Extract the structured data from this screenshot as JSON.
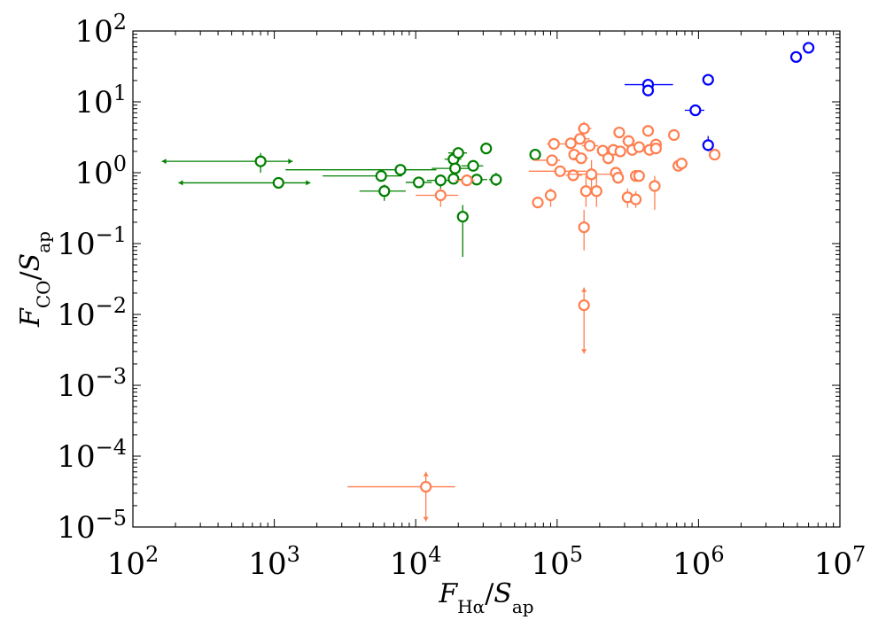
{
  "chart_data": {
    "type": "scatter",
    "xscale": "log",
    "yscale": "log",
    "xlim": [
      100,
      10000000
    ],
    "ylim": [
      1e-05,
      100
    ],
    "xlabel": {
      "main": "F",
      "sub": "Hα",
      "sep": "/",
      "main2": "S",
      "sub2": "ap"
    },
    "ylabel": {
      "main": "F",
      "sub": "CO",
      "sep": "/",
      "main2": "S",
      "sub2": "ap"
    },
    "x_ticks": [
      {
        "value": 100,
        "base": "10",
        "exp": "2"
      },
      {
        "value": 1000,
        "base": "10",
        "exp": "3"
      },
      {
        "value": 10000,
        "base": "10",
        "exp": "4"
      },
      {
        "value": 100000,
        "base": "10",
        "exp": "5"
      },
      {
        "value": 1000000,
        "base": "10",
        "exp": "6"
      },
      {
        "value": 10000000,
        "base": "10",
        "exp": "7"
      }
    ],
    "y_ticks": [
      {
        "value": 1e-05,
        "base": "10",
        "exp": "−5"
      },
      {
        "value": 0.0001,
        "base": "10",
        "exp": "−4"
      },
      {
        "value": 0.001,
        "base": "10",
        "exp": "−3"
      },
      {
        "value": 0.01,
        "base": "10",
        "exp": "−2"
      },
      {
        "value": 0.1,
        "base": "10",
        "exp": "−1"
      },
      {
        "value": 1,
        "base": "10",
        "exp": "0"
      },
      {
        "value": 10,
        "base": "10",
        "exp": "1"
      },
      {
        "value": 100,
        "base": "10",
        "exp": "2"
      }
    ],
    "series": [
      {
        "name": "green",
        "color": "#008000",
        "points": [
          {
            "x": 800,
            "y": 1.45,
            "xerr": [
              160,
              1350
            ],
            "yerr": [
              1.0,
              1.9
            ],
            "xarrows": "both"
          },
          {
            "x": 1070,
            "y": 0.72,
            "xerr": [
              210,
              1800
            ],
            "yerr": [
              0.62,
              0.84
            ],
            "xarrows": "both"
          },
          {
            "x": 5700,
            "y": 0.9,
            "xerr": [
              2200,
              8000
            ],
            "yerr": [
              0.82,
              1.0
            ]
          },
          {
            "x": 6000,
            "y": 0.55,
            "xerr": [
              4000,
              8500
            ],
            "yerr": [
              0.4,
              0.68
            ]
          },
          {
            "x": 7800,
            "y": 1.1,
            "xerr": [
              1200,
              14000
            ],
            "yerr": [
              0.98,
              1.22
            ]
          },
          {
            "x": 10500,
            "y": 0.73,
            "xerr": [
              8500,
              13000
            ]
          },
          {
            "x": 15000,
            "y": 0.78,
            "xerr": [
              12000,
              19000
            ],
            "yerr": [
              0.6,
              0.9
            ]
          },
          {
            "x": 18500,
            "y": 0.82
          },
          {
            "x": 18500,
            "y": 1.55,
            "xerr": [
              16000,
              21000
            ],
            "yerr": [
              1.35,
              1.7
            ]
          },
          {
            "x": 19000,
            "y": 1.15,
            "xerr": [
              13000,
              25000
            ],
            "yerr": [
              1.0,
              1.3
            ]
          },
          {
            "x": 20000,
            "y": 1.9,
            "xerr": [
              17000,
              23000
            ]
          },
          {
            "x": 21500,
            "y": 0.24,
            "yerr": [
              0.065,
              0.35
            ]
          },
          {
            "x": 25500,
            "y": 1.25,
            "xerr": [
              21000,
              30000
            ],
            "yerr": [
              1.1,
              1.4
            ]
          },
          {
            "x": 27000,
            "y": 0.8,
            "xerr": [
              20000,
              32000
            ]
          },
          {
            "x": 31500,
            "y": 2.2
          },
          {
            "x": 37000,
            "y": 0.8,
            "xerr": [
              33000,
              40000
            ],
            "yerr": [
              0.65,
              1.0
            ]
          },
          {
            "x": 70000,
            "y": 1.8
          }
        ]
      },
      {
        "name": "orange",
        "color": "#ff7f50",
        "points": [
          {
            "x": 11800,
            "y": 3.7e-05,
            "xerr": [
              3300,
              19000
            ],
            "yerr": [
              1.2e-05,
              6e-05
            ],
            "yarrows": "both"
          },
          {
            "x": 15000,
            "y": 0.48,
            "xerr": [
              10000,
              20000
            ],
            "yerr": [
              0.33,
              0.6
            ]
          },
          {
            "x": 23000,
            "y": 0.78,
            "xerr": [
              19000,
              26000
            ]
          },
          {
            "x": 73000,
            "y": 0.38,
            "yerr": [
              0.32,
              0.44
            ]
          },
          {
            "x": 90000,
            "y": 0.48,
            "yerr": [
              0.33,
              0.6
            ]
          },
          {
            "x": 92000,
            "y": 1.5,
            "xerr": [
              68000,
              105000
            ]
          },
          {
            "x": 95000,
            "y": 2.55,
            "xerr": [
              85000,
              115000
            ]
          },
          {
            "x": 105000,
            "y": 1.05,
            "xerr": [
              63000,
              160000
            ]
          },
          {
            "x": 125000,
            "y": 2.6,
            "xerr": [
              115000,
              145000
            ]
          },
          {
            "x": 130000,
            "y": 0.92,
            "xerr": [
              115000,
              150000
            ]
          },
          {
            "x": 132000,
            "y": 1.8
          },
          {
            "x": 145000,
            "y": 3.0,
            "xerr": [
              125000,
              170000
            ]
          },
          {
            "x": 148000,
            "y": 1.6,
            "xerr": [
              130000,
              165000
            ]
          },
          {
            "x": 155000,
            "y": 4.2,
            "xerr": [
              140000,
              175000
            ],
            "yerr": [
              3.6,
              5.2
            ]
          },
          {
            "x": 155000,
            "y": 0.17,
            "yerr": [
              0.08,
              0.3
            ]
          },
          {
            "x": 155000,
            "y": 0.0135,
            "yerr": [
              0.0028,
              0.024
            ],
            "yarrows": "both"
          },
          {
            "x": 160000,
            "y": 0.55,
            "yerr": [
              0.33,
              0.9
            ]
          },
          {
            "x": 170000,
            "y": 2.4,
            "xerr": [
              150000,
              195000
            ]
          },
          {
            "x": 175000,
            "y": 0.95,
            "xerr": [
              120000,
              270000
            ],
            "yerr": [
              0.55,
              1.5
            ]
          },
          {
            "x": 190000,
            "y": 0.55,
            "yerr": [
              0.33,
              0.95
            ]
          },
          {
            "x": 210000,
            "y": 2.05,
            "xerr": [
              195000,
              230000
            ]
          },
          {
            "x": 230000,
            "y": 1.6
          },
          {
            "x": 250000,
            "y": 2.1
          },
          {
            "x": 260000,
            "y": 1.0,
            "xerr": [
              240000,
              290000
            ]
          },
          {
            "x": 270000,
            "y": 0.85
          },
          {
            "x": 275000,
            "y": 3.7,
            "xerr": [
              260000,
              300000
            ]
          },
          {
            "x": 280000,
            "y": 2.0
          },
          {
            "x": 315000,
            "y": 0.45,
            "yerr": [
              0.32,
              0.6
            ]
          },
          {
            "x": 320000,
            "y": 2.8,
            "xerr": [
              290000,
              355000
            ]
          },
          {
            "x": 340000,
            "y": 2.1
          },
          {
            "x": 360000,
            "y": 0.9,
            "xerr": [
              335000,
              395000
            ]
          },
          {
            "x": 360000,
            "y": 0.42,
            "yerr": [
              0.32,
              0.55
            ]
          },
          {
            "x": 380000,
            "y": 2.3,
            "xerr": [
              355000,
              410000
            ]
          },
          {
            "x": 380000,
            "y": 0.9,
            "yerr": [
              0.78,
              1.0
            ]
          },
          {
            "x": 440000,
            "y": 3.9
          },
          {
            "x": 450000,
            "y": 2.1,
            "xerr": [
              420000,
              480000
            ]
          },
          {
            "x": 490000,
            "y": 0.65,
            "yerr": [
              0.3,
              0.9
            ]
          },
          {
            "x": 500000,
            "y": 2.5,
            "xerr": [
              470000,
              530000
            ]
          },
          {
            "x": 500000,
            "y": 2.2
          },
          {
            "x": 670000,
            "y": 3.4
          },
          {
            "x": 720000,
            "y": 1.25
          },
          {
            "x": 760000,
            "y": 1.35
          },
          {
            "x": 1300000,
            "y": 1.8
          }
        ]
      },
      {
        "name": "blue",
        "color": "#0000ff",
        "points": [
          {
            "x": 440000,
            "y": 17.5,
            "xerr": [
              300000,
              660000
            ]
          },
          {
            "x": 440000,
            "y": 14.5
          },
          {
            "x": 950000,
            "y": 7.6,
            "xerr": [
              800000,
              1100000
            ],
            "yerr": [
              6.3,
              9.0
            ]
          },
          {
            "x": 1170000,
            "y": 2.45,
            "yerr": [
              2.0,
              3.3
            ]
          },
          {
            "x": 1170000,
            "y": 20.5
          },
          {
            "x": 4900000,
            "y": 43
          },
          {
            "x": 6000000,
            "y": 58
          }
        ]
      }
    ]
  }
}
